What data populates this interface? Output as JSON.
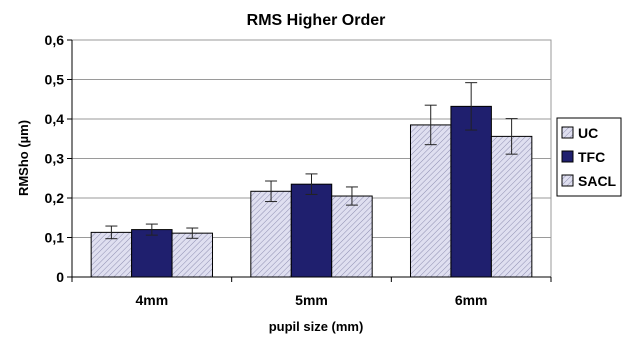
{
  "chart_data": {
    "type": "bar",
    "title": "RMS Higher Order",
    "xlabel": "pupil size (mm)",
    "ylabel": "RMSho (µm)",
    "ylim": [
      0,
      0.6
    ],
    "ytick_step": 0.1,
    "ytick_labels": [
      "0",
      "0,1",
      "0,2",
      "0,3",
      "0,4",
      "0,5",
      "0,6"
    ],
    "categories": [
      "4mm",
      "5mm",
      "6mm"
    ],
    "grid": true,
    "legend": "right",
    "series": [
      {
        "name": "UC",
        "values": [
          0.113,
          0.217,
          0.385
        ],
        "errors": [
          0.016,
          0.026,
          0.05
        ],
        "color": "#dcdcec",
        "hatch": true
      },
      {
        "name": "TFC",
        "values": [
          0.12,
          0.235,
          0.432
        ],
        "errors": [
          0.014,
          0.026,
          0.06
        ],
        "color": "#1f1f6e",
        "hatch": false
      },
      {
        "name": "SACL",
        "values": [
          0.111,
          0.205,
          0.356
        ],
        "errors": [
          0.013,
          0.023,
          0.045
        ],
        "color": "#dcdcec",
        "hatch": true
      }
    ]
  }
}
